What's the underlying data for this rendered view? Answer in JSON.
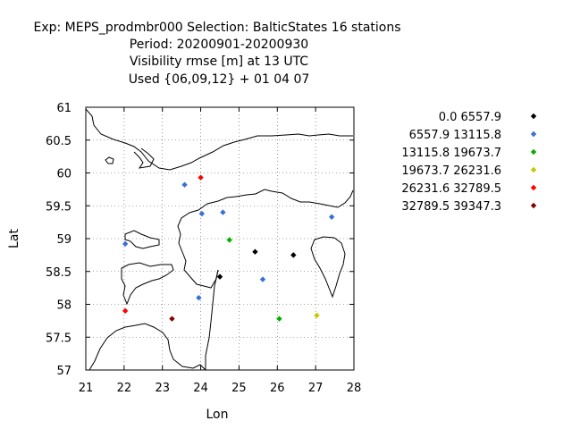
{
  "title_lines": [
    "Exp: MEPS_prodmbr000   Selection: BalticStates     16 stations",
    "Period: 20200901-20200930",
    "Visibility rmse [m] at  13 UTC",
    "Used {06,09,12} + 01 04 07"
  ],
  "chart_data": {
    "type": "scatter",
    "title": "Exp: MEPS_prodmbr000   Selection: BalticStates     16 stations",
    "xlabel": "Lon",
    "ylabel": "Lat",
    "xlim": [
      21,
      28
    ],
    "ylim": [
      57,
      61
    ],
    "xticks": [
      "21",
      "22",
      "23",
      "24",
      "25",
      "26",
      "27",
      "28"
    ],
    "yticks": [
      "57",
      "57.5",
      "58",
      "58.5",
      "59",
      "59.5",
      "60",
      "60.5",
      "61"
    ],
    "grid": true,
    "legend_position": "right",
    "series": [
      {
        "name": "0.0 6557.9",
        "color": "#000000",
        "points": [
          [
            24.5,
            58.42
          ],
          [
            25.42,
            58.8
          ],
          [
            26.42,
            58.75
          ]
        ]
      },
      {
        "name": "6557.9 13115.8",
        "color": "#3a6fd8",
        "points": [
          [
            23.58,
            59.82
          ],
          [
            24.03,
            59.38
          ],
          [
            24.58,
            59.4
          ],
          [
            22.03,
            58.92
          ],
          [
            27.42,
            59.33
          ],
          [
            25.62,
            58.38
          ],
          [
            23.95,
            58.1
          ]
        ]
      },
      {
        "name": "13115.8 19673.7",
        "color": "#00b000",
        "points": [
          [
            24.75,
            58.98
          ],
          [
            26.05,
            57.78
          ]
        ]
      },
      {
        "name": "19673.7 26231.6",
        "color": "#c8c800",
        "points": [
          [
            27.03,
            57.83
          ]
        ]
      },
      {
        "name": "26231.6 32789.5",
        "color": "#ff0000",
        "points": [
          [
            24.0,
            59.93
          ],
          [
            22.03,
            57.9
          ]
        ]
      },
      {
        "name": "32789.5 39347.3",
        "color": "#8b0000",
        "points": [
          [
            23.25,
            57.78
          ]
        ]
      }
    ]
  }
}
